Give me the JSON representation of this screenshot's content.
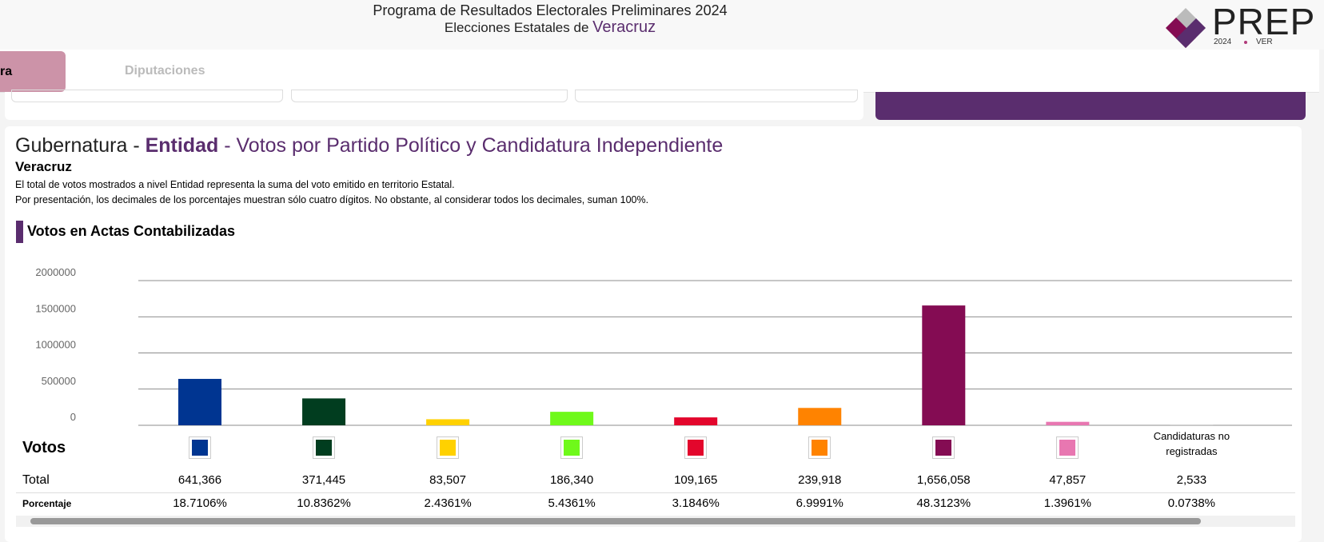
{
  "header": {
    "title": "Programa de Resultados Electorales Preliminares 2024",
    "subtitle_prefix": "Elecciones Estatales de",
    "subtitle_state": "Veracruz",
    "logo": "PREP",
    "logo_year": "2024",
    "logo_state": "VER"
  },
  "tabs": [
    "ra",
    "Diputaciones"
  ],
  "section": {
    "title_prefix": "Gubernatura -",
    "title_level": "Entidad",
    "title_suffix": "- Votos por Partido Político y Candidatura Independiente",
    "state": "Veracruz",
    "notes": [
      "El total de votos mostrados a nivel Entidad representa la suma del voto emitido en territorio Estatal.",
      "Por presentación, los decimales de los porcentajes muestran sólo cuatro dígitos. No obstante, al considerar todos los decimales, suman 100%."
    ],
    "subtitle": "Votos en Actas Contabilizadas"
  },
  "chart_data": {
    "type": "bar",
    "categories": [
      null,
      null,
      null,
      null,
      null,
      null,
      null,
      null,
      "Candidaturas no registradas"
    ],
    "values": [
      641366,
      371445,
      83507,
      186340,
      109165,
      239918,
      1656058,
      47857,
      2533
    ],
    "value_labels": [
      "641,366",
      "371,445",
      "83,507",
      "186,340",
      "109,165",
      "239,918",
      "1,656,058",
      "47,857",
      "2,533"
    ],
    "colors": [
      "#003591",
      "#013d1f",
      "#ffd100",
      "#6ff91a",
      "#e3062c",
      "#ff8300",
      "#840c53",
      "#e877b1",
      "#bbbbbb"
    ],
    "ylim": [
      0,
      2000000
    ],
    "yticks": [
      0,
      500000,
      1000000,
      1500000,
      2000000
    ],
    "grid": true
  },
  "table": {
    "header": "Votos",
    "total_label": "Total",
    "percent_label": "Porcentaje",
    "percentages": [
      "18.7106%",
      "10.8362%",
      "2.4361%",
      "5.4361%",
      "3.1846%",
      "6.9991%",
      "48.3123%",
      "1.3961%",
      "0.0738%"
    ]
  }
}
